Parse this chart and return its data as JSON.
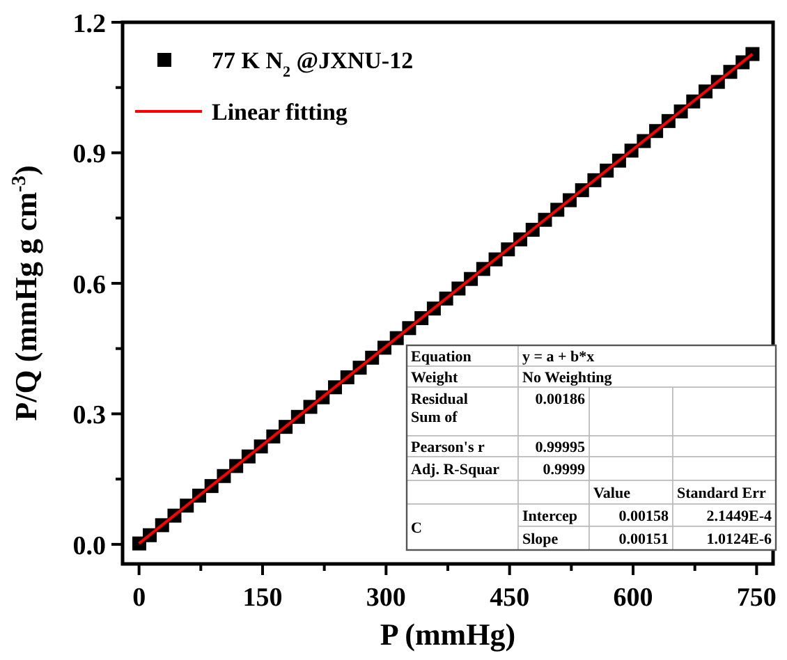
{
  "chart_data": {
    "type": "scatter",
    "xlabel": "P (mmHg)",
    "ylabel": "P/Q (mmHg g cm$^{-3}$)",
    "xlim": [
      -20,
      770
    ],
    "ylim": [
      -0.045,
      1.2
    ],
    "xticks": [
      0,
      {
        "value": 75,
        "label": null
      },
      150,
      {
        "value": 225,
        "label": null
      },
      300,
      {
        "value": 375,
        "label": null
      },
      450,
      {
        "value": 525,
        "label": null
      },
      600,
      {
        "value": 675,
        "label": null
      },
      750
    ],
    "yticks": [
      {
        "value": 0,
        "label": "0.0"
      },
      {
        "value": 0.15,
        "label": null
      },
      {
        "value": 0.3,
        "label": "0.3"
      },
      {
        "value": 0.45,
        "label": null
      },
      {
        "value": 0.6,
        "label": "0.6"
      },
      {
        "value": 0.75,
        "label": null
      },
      {
        "value": 0.9,
        "label": "0.9"
      },
      {
        "value": 1.05,
        "label": null
      },
      {
        "value": 1.2,
        "label": "1.2"
      }
    ],
    "grid": false,
    "legend": "top left",
    "series": [
      {
        "name": "77 K N$_{2}$ @JXNU-12",
        "marker": "square",
        "color": "#000000",
        "x": [
          0.3,
          13,
          28,
          43,
          58,
          73,
          88,
          103,
          118,
          133,
          148,
          163,
          178,
          193,
          208,
          223,
          238,
          253,
          268,
          283,
          298,
          313,
          328,
          343,
          358,
          373,
          388,
          403,
          418,
          433,
          448,
          463,
          478,
          493,
          508,
          523,
          538,
          553,
          568,
          583,
          598,
          613,
          628,
          643,
          658,
          673,
          688,
          703,
          718,
          733,
          745
        ],
        "values": [
          0.002,
          0.021,
          0.044,
          0.066,
          0.089,
          0.112,
          0.134,
          0.157,
          0.18,
          0.202,
          0.225,
          0.248,
          0.27,
          0.293,
          0.316,
          0.338,
          0.361,
          0.384,
          0.406,
          0.429,
          0.452,
          0.474,
          0.497,
          0.52,
          0.542,
          0.565,
          0.588,
          0.61,
          0.633,
          0.655,
          0.678,
          0.701,
          0.723,
          0.746,
          0.769,
          0.791,
          0.814,
          0.837,
          0.859,
          0.882,
          0.905,
          0.927,
          0.95,
          0.973,
          0.995,
          1.018,
          1.041,
          1.063,
          1.086,
          1.108,
          1.127
        ]
      },
      {
        "name": "Linear fitting",
        "type": "line",
        "marker": "none",
        "color": "#ff0000",
        "x": [
          0,
          745
        ],
        "values": [
          0.002,
          1.127
        ]
      }
    ],
    "annotations": [
      "Equation",
      "y = a + b*x",
      "Weight",
      "No Weighting",
      "Residual Sum of",
      "0.00186",
      "Pearson's r",
      "0.99995",
      "Adj. R-Squar",
      "0.9999",
      "Value",
      "Standard Err",
      "C",
      "Intercep",
      "0.00158",
      "2.1449E-4",
      "Slope",
      "0.00151",
      "1.0124E-6"
    ]
  }
}
